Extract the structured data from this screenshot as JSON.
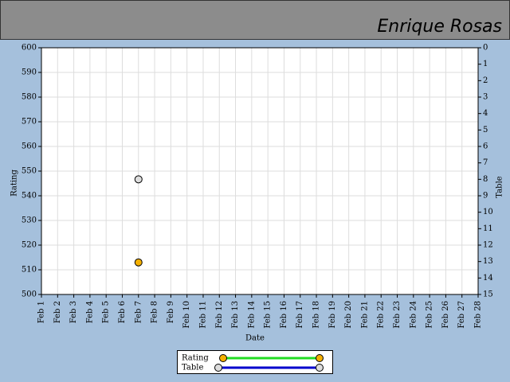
{
  "chart_data": {
    "type": "scatter",
    "title": "Enrique Rosas",
    "x_label": "Date",
    "y_label": "Rating",
    "y2_label": "Table",
    "categories": [
      "Feb 1",
      "Feb 2",
      "Feb 3",
      "Feb 4",
      "Feb 5",
      "Feb 6",
      "Feb 7",
      "Feb 8",
      "Feb 9",
      "Feb 10",
      "Feb 11",
      "Feb 12",
      "Feb 13",
      "Feb 14",
      "Feb 15",
      "Feb 16",
      "Feb 17",
      "Feb 18",
      "Feb 19",
      "Feb 20",
      "Feb 21",
      "Feb 22",
      "Feb 23",
      "Feb 24",
      "Feb 25",
      "Feb 26",
      "Feb 27",
      "Feb 28"
    ],
    "series": [
      {
        "name": "Rating",
        "color": "#22dd22",
        "marker_color": "#f5b000",
        "values": [
          null,
          null,
          null,
          null,
          null,
          null,
          513,
          null,
          null,
          null,
          null,
          null,
          null,
          null,
          null,
          null,
          null,
          null,
          null,
          null,
          null,
          null,
          null,
          null,
          null,
          null,
          null,
          null
        ]
      },
      {
        "name": "Table",
        "color": "#0000cc",
        "marker_color": "#dddddd",
        "axis": "y2",
        "values": [
          null,
          null,
          null,
          null,
          null,
          null,
          8,
          null,
          null,
          null,
          null,
          null,
          null,
          null,
          null,
          null,
          null,
          null,
          null,
          null,
          null,
          null,
          null,
          null,
          null,
          null,
          null,
          null
        ]
      }
    ],
    "ylim": [
      500,
      600
    ],
    "yticks": [
      500,
      510,
      520,
      530,
      540,
      550,
      560,
      570,
      580,
      590,
      600
    ],
    "y2lim": [
      15,
      0
    ],
    "y2ticks": [
      0,
      1,
      2,
      3,
      4,
      5,
      6,
      7,
      8,
      9,
      10,
      11,
      12,
      13,
      14,
      15
    ],
    "grid": true,
    "legend": "bottom"
  }
}
